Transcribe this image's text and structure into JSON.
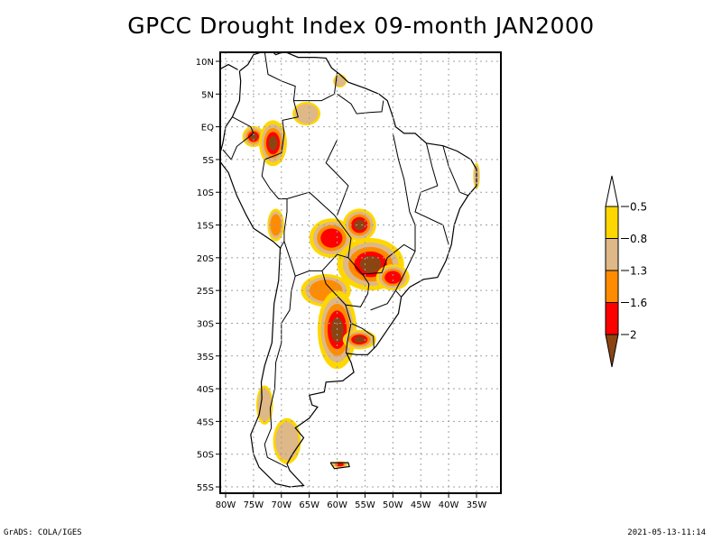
{
  "title": "GPCC Drought Index 09-month JAN2000",
  "footer": {
    "left": "GrADS: COLA/IGES",
    "right": "2021-05-13-11:14"
  },
  "map": {
    "region": "South America",
    "lon_range": [
      -81.5,
      -31.5
    ],
    "lat_range": [
      -56,
      11
    ],
    "lat_ticks": [
      {
        "value": 10,
        "label": "10N"
      },
      {
        "value": 5,
        "label": "5N"
      },
      {
        "value": 0,
        "label": "EQ"
      },
      {
        "value": -5,
        "label": "5S"
      },
      {
        "value": -10,
        "label": "10S"
      },
      {
        "value": -15,
        "label": "15S"
      },
      {
        "value": -20,
        "label": "20S"
      },
      {
        "value": -25,
        "label": "25S"
      },
      {
        "value": -30,
        "label": "30S"
      },
      {
        "value": -35,
        "label": "35S"
      },
      {
        "value": -40,
        "label": "40S"
      },
      {
        "value": -45,
        "label": "45S"
      },
      {
        "value": -50,
        "label": "50S"
      },
      {
        "value": -55,
        "label": "55S"
      }
    ],
    "lon_ticks": [
      {
        "value": -80,
        "label": "80W"
      },
      {
        "value": -75,
        "label": "75W"
      },
      {
        "value": -70,
        "label": "70W"
      },
      {
        "value": -65,
        "label": "65W"
      },
      {
        "value": -60,
        "label": "60W"
      },
      {
        "value": -55,
        "label": "55W"
      },
      {
        "value": -50,
        "label": "50W"
      },
      {
        "value": -45,
        "label": "45W"
      },
      {
        "value": -40,
        "label": "40W"
      },
      {
        "value": -35,
        "label": "35W"
      }
    ],
    "grid": "dotted"
  },
  "colorbar": {
    "orientation": "vertical",
    "placement": "right",
    "levels": [
      {
        "color": "#ffffff",
        "label": "",
        "range": "> -0.5",
        "shape": "top-triangle"
      },
      {
        "color": "#ffd700",
        "label": "-0.5",
        "range": "-0.5 to -0.8"
      },
      {
        "color": "#deb887",
        "label": "-0.8",
        "range": "-0.8 to -1.3"
      },
      {
        "color": "#ff8c00",
        "label": "-1.3",
        "range": "-1.3 to -1.6"
      },
      {
        "color": "#ff0000",
        "label": "-1.6",
        "range": "-1.6 to -2"
      },
      {
        "color": "#8b4513",
        "label": "-2",
        "range": "< -2",
        "shape": "bottom-triangle"
      }
    ]
  },
  "drought_regions": [
    {
      "name": "Colombia-Ecuador",
      "lon": -75,
      "lat": -1.5,
      "rx": 2,
      "ry": 1.6,
      "max_level": 5
    },
    {
      "name": "Peru-Amazon",
      "lon": -71.5,
      "lat": -2.5,
      "rx": 2.5,
      "ry": 3.5,
      "max_level": 5
    },
    {
      "name": "Venezuela-Brazil",
      "lon": -65.5,
      "lat": 2,
      "rx": 2.5,
      "ry": 1.8,
      "max_level": 2
    },
    {
      "name": "Guyana",
      "lon": -59.5,
      "lat": 7,
      "rx": 1.2,
      "ry": 1,
      "max_level": 2
    },
    {
      "name": "Bolivia-east",
      "lon": -61,
      "lat": -17,
      "rx": 4,
      "ry": 3,
      "max_level": 4
    },
    {
      "name": "Mato Grosso",
      "lon": -56,
      "lat": -15,
      "rx": 3,
      "ry": 2.5,
      "max_level": 5
    },
    {
      "name": "Parana-Paraguay",
      "lon": -54,
      "lat": -21,
      "rx": 6,
      "ry": 4,
      "max_level": 5
    },
    {
      "name": "Sao Paulo",
      "lon": -50,
      "lat": -23,
      "rx": 3,
      "ry": 2,
      "max_level": 4
    },
    {
      "name": "Chaco",
      "lon": -62,
      "lat": -25,
      "rx": 4.5,
      "ry": 2.5,
      "max_level": 3
    },
    {
      "name": "Argentina-central",
      "lon": -60,
      "lat": -31,
      "rx": 3.5,
      "ry": 6,
      "max_level": 5
    },
    {
      "name": "Uruguay",
      "lon": -56,
      "lat": -32.5,
      "rx": 3,
      "ry": 1.5,
      "max_level": 5
    },
    {
      "name": "Chile-south",
      "lon": -73,
      "lat": -42.5,
      "rx": 1.5,
      "ry": 3,
      "max_level": 2
    },
    {
      "name": "Patagonia",
      "lon": -69,
      "lat": -48,
      "rx": 2.5,
      "ry": 3.5,
      "max_level": 2
    },
    {
      "name": "Falklands",
      "lon": -59.5,
      "lat": -51.6,
      "rx": 1.4,
      "ry": 0.5,
      "max_level": 4
    },
    {
      "name": "Peru-Andes",
      "lon": -71,
      "lat": -15,
      "rx": 1.5,
      "ry": 2.5,
      "max_level": 3
    },
    {
      "name": "NE Brazil coast",
      "lon": -35,
      "lat": -7.5,
      "rx": 0.6,
      "ry": 2,
      "max_level": 2
    }
  ]
}
